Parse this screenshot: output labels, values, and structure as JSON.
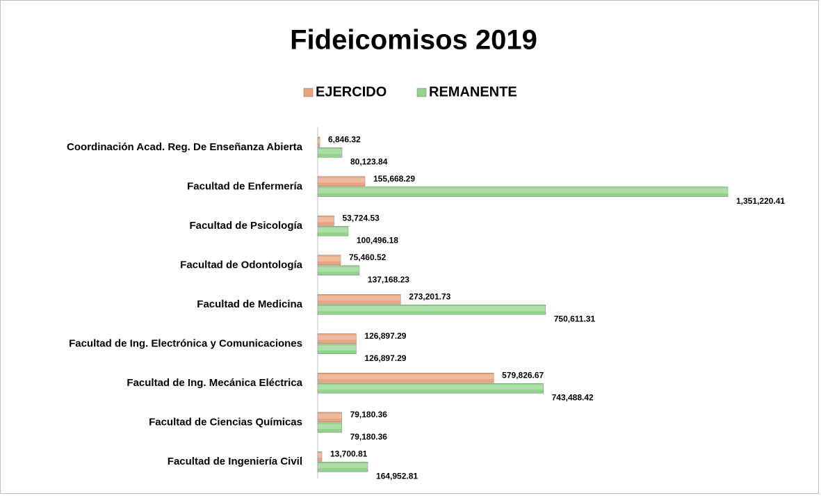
{
  "chart_data": {
    "type": "bar",
    "orientation": "horizontal",
    "title": "Fideicomisos 2019",
    "categories": [
      "Coordinación Acad. Reg. De Enseñanza Abierta",
      "Facultad de Enfermería",
      "Facultad de Psicología",
      "Facultad de Odontología",
      "Facultad de Medicina",
      "Facultad de Ing. Electrónica y Comunicaciones",
      "Facultad de Ing. Mecánica Eléctrica",
      "Facultad de Ciencias Químicas",
      "Facultad de Ingeniería Civil"
    ],
    "series": [
      {
        "name": "EJERCIDO",
        "color": "#e9a47f",
        "values": [
          6846.32,
          155668.29,
          53724.53,
          75460.52,
          273201.73,
          126897.29,
          579826.67,
          79180.36,
          13700.81
        ],
        "value_labels": [
          "6,846.32",
          "155,668.29",
          "53,724.53",
          "75,460.52",
          "273,201.73",
          "126,897.29",
          "579,826.67",
          "79,180.36",
          "13,700.81"
        ]
      },
      {
        "name": "REMANENTE",
        "color": "#92d38b",
        "values": [
          80123.84,
          1351220.41,
          100496.18,
          137168.23,
          750611.31,
          126897.29,
          743488.42,
          79180.36,
          164952.81
        ],
        "value_labels": [
          "80,123.84",
          "1,351,220.41",
          "100,496.18",
          "137,168.23",
          "750,611.31",
          "126,897.29",
          "743,488.42",
          "79,180.36",
          "164,952.81"
        ]
      }
    ],
    "legend": "top"
  }
}
